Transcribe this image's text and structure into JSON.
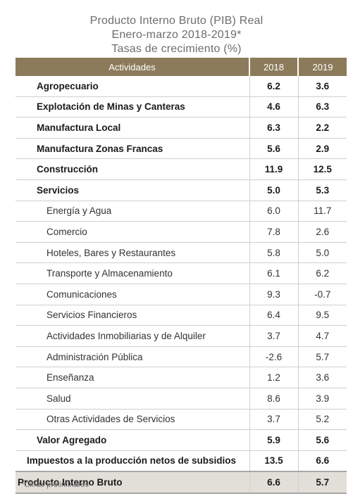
{
  "title": {
    "line1": "Producto Interno Bruto (PIB) Real",
    "line2": "Enero-marzo 2018-2019*",
    "line3": "Tasas de crecimiento (%)"
  },
  "table": {
    "headers": [
      "Actividades",
      "2018",
      "2019"
    ],
    "rows": [
      {
        "label": "Agropecuario",
        "v2018": "6.2",
        "v2019": "3.6"
      },
      {
        "label": "Explotación de Minas y Canteras",
        "v2018": "4.6",
        "v2019": "6.3"
      },
      {
        "label": "Manufactura Local",
        "v2018": "6.3",
        "v2019": "2.2"
      },
      {
        "label": "Manufactura Zonas Francas",
        "v2018": "5.6",
        "v2019": "2.9"
      },
      {
        "label": "Construcción",
        "v2018": "11.9",
        "v2019": "12.5"
      },
      {
        "label": "Servicios",
        "v2018": "5.0",
        "v2019": "5.3"
      },
      {
        "label": "Energía y Agua",
        "v2018": "6.0",
        "v2019": "11.7"
      },
      {
        "label": "Comercio",
        "v2018": "7.8",
        "v2019": "2.6"
      },
      {
        "label": "Hoteles, Bares y Restaurantes",
        "v2018": "5.8",
        "v2019": "5.0"
      },
      {
        "label": "Transporte y Almacenamiento",
        "v2018": "6.1",
        "v2019": "6.2"
      },
      {
        "label": "Comunicaciones",
        "v2018": "9.3",
        "v2019": "-0.7"
      },
      {
        "label": "Servicios Financieros",
        "v2018": "6.4",
        "v2019": "9.5"
      },
      {
        "label": "Actividades Inmobiliarias y de Alquiler",
        "v2018": "3.7",
        "v2019": "4.7"
      },
      {
        "label": "Administración Pública",
        "v2018": "-2.6",
        "v2019": "5.7"
      },
      {
        "label": "Enseñanza",
        "v2018": "1.2",
        "v2019": "3.6"
      },
      {
        "label": "Salud",
        "v2018": "8.6",
        "v2019": "3.9"
      },
      {
        "label": "Otras Actividades de Servicios",
        "v2018": "3.7",
        "v2019": "5.2"
      },
      {
        "label": "Valor Agregado",
        "v2018": "5.9",
        "v2019": "5.6"
      },
      {
        "label": "Impuestos a la producción netos de subsidios",
        "v2018": "13.5",
        "v2019": "6.6"
      },
      {
        "label": "Producto Interno Bruto",
        "v2018": "6.6",
        "v2019": "5.7"
      }
    ]
  },
  "footnote": "*Cifras preliminares",
  "colors": {
    "header_bg": "#8c7b5b",
    "header_text": "#ffffff",
    "total_row_bg": "#e2dfd8",
    "title_text": "#6d6d6d"
  }
}
